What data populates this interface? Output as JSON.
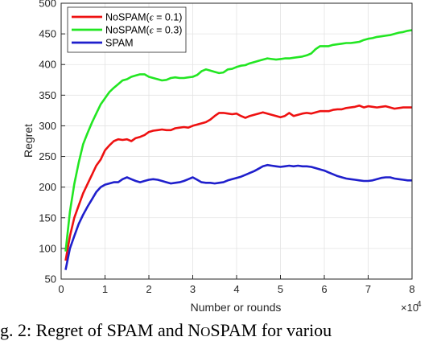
{
  "chart_data": {
    "type": "line",
    "title": "",
    "xlabel": "Number or rounds",
    "ylabel": "Regret",
    "x_exponent_label": "×10",
    "x_exponent_power": "4",
    "xlim": [
      0,
      8
    ],
    "ylim": [
      50,
      500
    ],
    "xticks": [
      0,
      1,
      2,
      3,
      4,
      5,
      6,
      7,
      8
    ],
    "yticks": [
      50,
      100,
      150,
      200,
      250,
      300,
      350,
      400,
      450,
      500
    ],
    "grid": true,
    "legend_position": "top-left",
    "series": [
      {
        "name": "NoSPAM(ϵ = 0.1)",
        "label_prefix": "NoSPAM(",
        "label_symbol": "ϵ",
        "label_suffix": " = 0.1)",
        "color": "#ee1111",
        "x": [
          0.1,
          0.2,
          0.3,
          0.4,
          0.5,
          0.6,
          0.7,
          0.8,
          0.9,
          1.0,
          1.1,
          1.2,
          1.3,
          1.4,
          1.5,
          1.6,
          1.7,
          1.8,
          1.9,
          2.0,
          2.1,
          2.2,
          2.3,
          2.4,
          2.5,
          2.6,
          2.7,
          2.8,
          2.9,
          3.0,
          3.1,
          3.2,
          3.3,
          3.4,
          3.5,
          3.6,
          3.7,
          3.8,
          3.9,
          4.0,
          4.1,
          4.2,
          4.3,
          4.4,
          4.5,
          4.6,
          4.7,
          4.8,
          4.9,
          5.0,
          5.1,
          5.2,
          5.3,
          5.4,
          5.5,
          5.6,
          5.7,
          5.8,
          5.9,
          6.0,
          6.1,
          6.2,
          6.3,
          6.4,
          6.5,
          6.6,
          6.7,
          6.8,
          6.9,
          7.0,
          7.1,
          7.2,
          7.3,
          7.4,
          7.5,
          7.6,
          7.7,
          7.8,
          7.9,
          8.0
        ],
        "values": [
          80,
          120,
          150,
          170,
          190,
          205,
          220,
          235,
          245,
          260,
          268,
          275,
          278,
          277,
          278,
          275,
          280,
          282,
          285,
          290,
          292,
          293,
          294,
          293,
          293,
          296,
          297,
          298,
          297,
          300,
          302,
          304,
          306,
          310,
          316,
          321,
          321,
          320,
          319,
          320,
          316,
          313,
          316,
          318,
          320,
          322,
          320,
          318,
          316,
          314,
          316,
          321,
          316,
          318,
          320,
          321,
          320,
          322,
          324,
          324,
          324,
          326,
          327,
          327,
          329,
          330,
          331,
          333,
          330,
          332,
          331,
          330,
          331,
          332,
          330,
          328,
          329,
          330,
          330,
          330
        ]
      },
      {
        "name": "NoSPAM(ϵ = 0.3)",
        "label_prefix": "NoSPAM(",
        "label_symbol": "ϵ",
        "label_suffix": " = 0.3)",
        "color": "#22e622",
        "x": [
          0.1,
          0.2,
          0.3,
          0.4,
          0.5,
          0.6,
          0.7,
          0.8,
          0.9,
          1.0,
          1.1,
          1.2,
          1.3,
          1.4,
          1.5,
          1.6,
          1.7,
          1.8,
          1.9,
          2.0,
          2.1,
          2.2,
          2.3,
          2.4,
          2.5,
          2.6,
          2.7,
          2.8,
          2.9,
          3.0,
          3.1,
          3.2,
          3.3,
          3.4,
          3.5,
          3.6,
          3.7,
          3.8,
          3.9,
          4.0,
          4.1,
          4.2,
          4.3,
          4.4,
          4.5,
          4.6,
          4.7,
          4.8,
          4.9,
          5.0,
          5.1,
          5.2,
          5.3,
          5.4,
          5.5,
          5.6,
          5.7,
          5.8,
          5.9,
          6.0,
          6.1,
          6.2,
          6.3,
          6.4,
          6.5,
          6.6,
          6.7,
          6.8,
          6.9,
          7.0,
          7.1,
          7.2,
          7.3,
          7.4,
          7.5,
          7.6,
          7.7,
          7.8,
          7.9,
          8.0
        ],
        "values": [
          95,
          160,
          205,
          240,
          270,
          288,
          305,
          320,
          335,
          345,
          355,
          362,
          368,
          374,
          376,
          380,
          382,
          384,
          384,
          380,
          378,
          376,
          374,
          375,
          378,
          379,
          378,
          378,
          379,
          380,
          383,
          389,
          392,
          390,
          388,
          386,
          387,
          392,
          393,
          396,
          398,
          399,
          402,
          404,
          406,
          408,
          410,
          409,
          408,
          409,
          410,
          410,
          411,
          412,
          413,
          415,
          418,
          425,
          430,
          430,
          430,
          432,
          433,
          434,
          435,
          435,
          436,
          437,
          440,
          442,
          443,
          445,
          446,
          447,
          448,
          450,
          452,
          453,
          455,
          456
        ]
      },
      {
        "name": "SPAM",
        "label_prefix": "SPAM",
        "label_symbol": "",
        "label_suffix": "",
        "color": "#1f1fcc",
        "x": [
          0.1,
          0.2,
          0.3,
          0.4,
          0.5,
          0.6,
          0.7,
          0.8,
          0.9,
          1.0,
          1.1,
          1.2,
          1.3,
          1.4,
          1.5,
          1.6,
          1.7,
          1.8,
          1.9,
          2.0,
          2.1,
          2.2,
          2.3,
          2.4,
          2.5,
          2.6,
          2.7,
          2.8,
          2.9,
          3.0,
          3.1,
          3.2,
          3.3,
          3.4,
          3.5,
          3.6,
          3.7,
          3.8,
          3.9,
          4.0,
          4.1,
          4.2,
          4.3,
          4.4,
          4.5,
          4.6,
          4.7,
          4.8,
          4.9,
          5.0,
          5.1,
          5.2,
          5.3,
          5.4,
          5.5,
          5.6,
          5.7,
          5.8,
          5.9,
          6.0,
          6.1,
          6.2,
          6.3,
          6.4,
          6.5,
          6.6,
          6.7,
          6.8,
          6.9,
          7.0,
          7.1,
          7.2,
          7.3,
          7.4,
          7.5,
          7.6,
          7.7,
          7.8,
          7.9,
          8.0
        ],
        "values": [
          65,
          100,
          120,
          140,
          155,
          168,
          180,
          192,
          200,
          204,
          206,
          208,
          208,
          213,
          216,
          213,
          210,
          208,
          210,
          212,
          213,
          212,
          210,
          208,
          206,
          207,
          208,
          210,
          213,
          216,
          212,
          208,
          207,
          207,
          206,
          207,
          208,
          211,
          213,
          215,
          217,
          220,
          223,
          226,
          230,
          234,
          236,
          235,
          234,
          233,
          234,
          235,
          234,
          235,
          234,
          234,
          233,
          231,
          229,
          227,
          224,
          221,
          218,
          216,
          214,
          213,
          212,
          211,
          210,
          210,
          211,
          213,
          215,
          216,
          216,
          214,
          213,
          212,
          211,
          211
        ]
      }
    ]
  },
  "caption": {
    "part1": "g. 2: Regret of SPAM and N",
    "part2": "O",
    "part3": "SPAM for variou"
  }
}
